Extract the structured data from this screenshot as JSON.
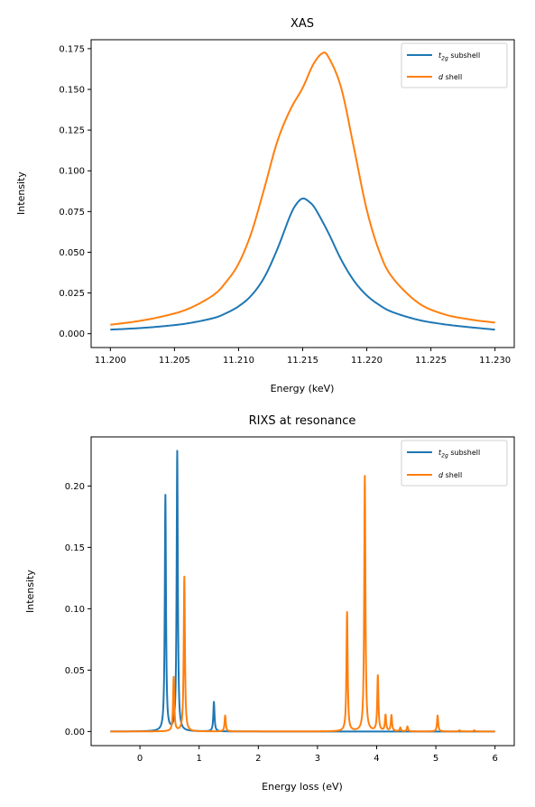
{
  "chart_data": [
    {
      "type": "line",
      "title": "XAS",
      "xlabel": "Energy (keV)",
      "ylabel": "Intensity",
      "xlim": [
        11.1985,
        11.2315
      ],
      "ylim": [
        -0.0085,
        0.1805
      ],
      "xticks": [
        "11.200",
        "11.205",
        "11.210",
        "11.215",
        "11.220",
        "11.225",
        "11.230"
      ],
      "xtick_values": [
        11.2,
        11.205,
        11.21,
        11.215,
        11.22,
        11.225,
        11.23
      ],
      "yticks": [
        "0.000",
        "0.025",
        "0.050",
        "0.075",
        "0.100",
        "0.125",
        "0.150",
        "0.175"
      ],
      "ytick_values": [
        0,
        0.025,
        0.05,
        0.075,
        0.1,
        0.125,
        0.15,
        0.175
      ],
      "grid": false,
      "legend": "upper right",
      "series": [
        {
          "name_main": "t",
          "name_sub": "2g",
          "name_rest": " subshell",
          "color": "#1f77b4",
          "x": [
            11.2,
            11.202,
            11.204,
            11.206,
            11.208,
            11.209,
            11.21,
            11.211,
            11.212,
            11.213,
            11.214,
            11.2145,
            11.215,
            11.2155,
            11.216,
            11.217,
            11.218,
            11.219,
            11.22,
            11.221,
            11.222,
            11.224,
            11.226,
            11.228,
            11.23
          ],
          "y": [
            0.0025,
            0.0033,
            0.0045,
            0.0063,
            0.0095,
            0.0125,
            0.0168,
            0.0235,
            0.0345,
            0.0515,
            0.072,
            0.0795,
            0.083,
            0.081,
            0.0765,
            0.062,
            0.0455,
            0.0325,
            0.0235,
            0.0175,
            0.0133,
            0.0085,
            0.0058,
            0.004,
            0.0025
          ]
        },
        {
          "name_main": "d",
          "name_sub": "",
          "name_rest": " shell",
          "color": "#ff7f0e",
          "x": [
            11.2,
            11.202,
            11.204,
            11.206,
            11.208,
            11.209,
            11.21,
            11.211,
            11.212,
            11.213,
            11.214,
            11.215,
            11.2158,
            11.2165,
            11.217,
            11.218,
            11.219,
            11.22,
            11.221,
            11.222,
            11.224,
            11.226,
            11.228,
            11.23
          ],
          "y": [
            0.0055,
            0.0075,
            0.0105,
            0.015,
            0.0235,
            0.0315,
            0.043,
            0.062,
            0.089,
            0.1175,
            0.137,
            0.151,
            0.165,
            0.172,
            0.17,
            0.151,
            0.114,
            0.076,
            0.05,
            0.0345,
            0.019,
            0.012,
            0.0088,
            0.0068
          ]
        }
      ]
    },
    {
      "type": "line",
      "title": "RIXS at resonance",
      "xlabel": "Energy loss (eV)",
      "ylabel": "Intensity",
      "xlim": [
        -0.825,
        6.325
      ],
      "ylim": [
        -0.0115,
        0.24
      ],
      "xticks": [
        "0",
        "1",
        "2",
        "3",
        "4",
        "5",
        "6"
      ],
      "xtick_values": [
        0,
        1,
        2,
        3,
        4,
        5,
        6
      ],
      "yticks": [
        "0.00",
        "0.05",
        "0.10",
        "0.15",
        "0.20"
      ],
      "ytick_values": [
        0,
        0.05,
        0.1,
        0.15,
        0.2
      ],
      "grid": false,
      "legend": "upper right",
      "series": [
        {
          "name_main": "t",
          "name_sub": "2g",
          "name_rest": " subshell",
          "color": "#1f77b4",
          "x": [
            -0.5,
            6.0
          ],
          "baseline": 0,
          "peaks": [
            {
              "x0": 0.43,
              "amp": 0.192,
              "gamma": 0.012
            },
            {
              "x0": 0.63,
              "amp": 0.228,
              "gamma": 0.012
            },
            {
              "x0": 1.25,
              "amp": 0.024,
              "gamma": 0.012
            }
          ]
        },
        {
          "name_main": "d",
          "name_sub": "",
          "name_rest": " shell",
          "color": "#ff7f0e",
          "x": [
            -0.5,
            6.0
          ],
          "baseline": 0,
          "peaks": [
            {
              "x0": 0.57,
              "amp": 0.044,
              "gamma": 0.012
            },
            {
              "x0": 0.75,
              "amp": 0.126,
              "gamma": 0.012
            },
            {
              "x0": 1.44,
              "amp": 0.013,
              "gamma": 0.012
            },
            {
              "x0": 3.5,
              "amp": 0.097,
              "gamma": 0.012
            },
            {
              "x0": 3.8,
              "amp": 0.208,
              "gamma": 0.012
            },
            {
              "x0": 4.02,
              "amp": 0.045,
              "gamma": 0.012
            },
            {
              "x0": 4.15,
              "amp": 0.013,
              "gamma": 0.012
            },
            {
              "x0": 4.25,
              "amp": 0.013,
              "gamma": 0.012
            },
            {
              "x0": 4.4,
              "amp": 0.003,
              "gamma": 0.012
            },
            {
              "x0": 4.52,
              "amp": 0.004,
              "gamma": 0.012
            },
            {
              "x0": 5.03,
              "amp": 0.013,
              "gamma": 0.012
            },
            {
              "x0": 5.4,
              "amp": 0.001,
              "gamma": 0.012
            },
            {
              "x0": 5.65,
              "amp": 0.001,
              "gamma": 0.012
            }
          ]
        }
      ]
    }
  ]
}
